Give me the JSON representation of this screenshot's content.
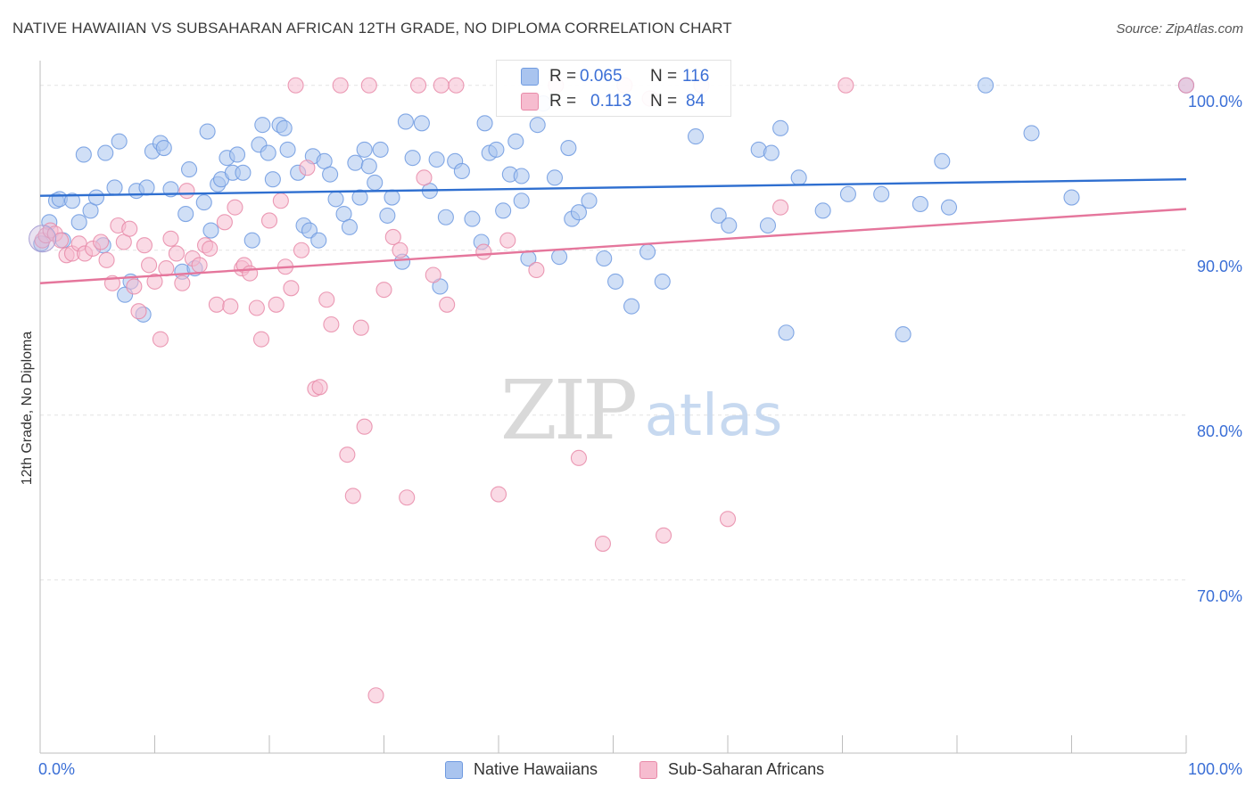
{
  "header": {
    "title": "NATIVE HAWAIIAN VS SUBSAHARAN AFRICAN 12TH GRADE, NO DIPLOMA CORRELATION CHART",
    "source": "Source: ZipAtlas.com"
  },
  "watermark": {
    "zip": "ZIP",
    "atlas": "atlas"
  },
  "legend": {
    "rows": [
      {
        "r_label": "R =",
        "r_value": "0.065",
        "n_label": "N =",
        "n_value": "116",
        "color": "#a9c4ef",
        "border": "#6f9ae0"
      },
      {
        "r_label": "R =",
        "r_value": "0.113",
        "n_label": "N =",
        "n_value": "84",
        "color": "#f6bccf",
        "border": "#e88aa8"
      }
    ],
    "bottom": [
      {
        "label": "Native Hawaiians",
        "color": "#a9c4ef",
        "border": "#6f9ae0"
      },
      {
        "label": "Sub-Saharan Africans",
        "color": "#f6bccf",
        "border": "#e88aa8"
      }
    ]
  },
  "chart_data": {
    "type": "scatter",
    "title": "NATIVE HAWAIIAN VS SUBSAHARAN AFRICAN 12TH GRADE, NO DIPLOMA CORRELATION CHART",
    "xlabel": "",
    "ylabel": "12th Grade, No Diploma",
    "xlim": [
      0,
      100
    ],
    "ylim": [
      59.5,
      101.5
    ],
    "x_tick_labels": {
      "left": "0.0%",
      "right": "100.0%"
    },
    "y_ticks": [
      {
        "value": 100,
        "label": "100.0%"
      },
      {
        "value": 90,
        "label": "90.0%"
      },
      {
        "value": 80,
        "label": "80.0%"
      },
      {
        "value": 70,
        "label": "70.0%"
      }
    ],
    "grid": true,
    "legend_position": "top-center",
    "series": [
      {
        "name": "Native Hawaiians",
        "color": "#6f9ae0",
        "fill": "#a9c4ef",
        "trend": {
          "x": [
            0,
            100
          ],
          "y": [
            93.3,
            94.3
          ],
          "color": "#2f6fd0"
        },
        "points": [
          [
            0.1,
            90.4
          ],
          [
            0.8,
            91.7
          ],
          [
            1.4,
            93.0
          ],
          [
            1.7,
            93.1
          ],
          [
            2.0,
            90.6
          ],
          [
            2.8,
            93.0
          ],
          [
            3.4,
            91.7
          ],
          [
            3.8,
            95.8
          ],
          [
            4.4,
            92.4
          ],
          [
            4.9,
            93.2
          ],
          [
            5.5,
            90.3
          ],
          [
            5.7,
            95.9
          ],
          [
            6.5,
            93.8
          ],
          [
            6.9,
            96.6
          ],
          [
            7.4,
            87.3
          ],
          [
            7.9,
            88.1
          ],
          [
            8.4,
            93.6
          ],
          [
            9.0,
            86.1
          ],
          [
            9.3,
            93.8
          ],
          [
            9.8,
            96.0
          ],
          [
            10.5,
            96.5
          ],
          [
            10.8,
            96.2
          ],
          [
            11.4,
            93.7
          ],
          [
            12.4,
            88.7
          ],
          [
            12.7,
            92.2
          ],
          [
            13.0,
            94.9
          ],
          [
            13.5,
            88.9
          ],
          [
            14.3,
            92.9
          ],
          [
            14.6,
            97.2
          ],
          [
            14.9,
            91.2
          ],
          [
            15.5,
            94.0
          ],
          [
            15.8,
            94.3
          ],
          [
            16.3,
            95.6
          ],
          [
            16.8,
            94.7
          ],
          [
            17.2,
            95.8
          ],
          [
            17.7,
            94.7
          ],
          [
            18.5,
            90.6
          ],
          [
            19.1,
            96.4
          ],
          [
            19.4,
            97.6
          ],
          [
            19.9,
            95.9
          ],
          [
            20.3,
            94.3
          ],
          [
            20.9,
            97.6
          ],
          [
            21.3,
            97.4
          ],
          [
            21.6,
            96.1
          ],
          [
            22.5,
            94.7
          ],
          [
            23.0,
            91.5
          ],
          [
            23.5,
            91.2
          ],
          [
            23.8,
            95.7
          ],
          [
            24.3,
            90.6
          ],
          [
            24.8,
            95.4
          ],
          [
            25.3,
            94.6
          ],
          [
            25.8,
            93.1
          ],
          [
            26.5,
            92.2
          ],
          [
            27.0,
            91.4
          ],
          [
            27.5,
            95.3
          ],
          [
            27.9,
            93.2
          ],
          [
            28.3,
            96.1
          ],
          [
            28.7,
            95.1
          ],
          [
            29.2,
            94.1
          ],
          [
            29.7,
            96.1
          ],
          [
            30.3,
            92.1
          ],
          [
            30.7,
            93.2
          ],
          [
            31.6,
            89.3
          ],
          [
            31.9,
            97.8
          ],
          [
            32.5,
            95.6
          ],
          [
            33.3,
            97.7
          ],
          [
            34.0,
            93.6
          ],
          [
            34.6,
            95.5
          ],
          [
            34.9,
            87.8
          ],
          [
            35.4,
            92.0
          ],
          [
            36.2,
            95.4
          ],
          [
            36.8,
            94.8
          ],
          [
            37.7,
            91.9
          ],
          [
            38.5,
            90.5
          ],
          [
            38.8,
            97.7
          ],
          [
            39.2,
            95.9
          ],
          [
            39.8,
            96.1
          ],
          [
            40.4,
            92.4
          ],
          [
            41.0,
            94.6
          ],
          [
            41.5,
            96.6
          ],
          [
            42.0,
            94.5
          ],
          [
            42.0,
            93.0
          ],
          [
            42.6,
            89.5
          ],
          [
            43.4,
            97.6
          ],
          [
            43.9,
            98.9
          ],
          [
            44.9,
            94.4
          ],
          [
            45.3,
            89.6
          ],
          [
            46.1,
            96.2
          ],
          [
            46.4,
            91.9
          ],
          [
            47.0,
            92.3
          ],
          [
            47.9,
            93.0
          ],
          [
            49.2,
            89.5
          ],
          [
            50.2,
            88.1
          ],
          [
            51.6,
            86.6
          ],
          [
            53.0,
            89.9
          ],
          [
            54.3,
            88.1
          ],
          [
            57.2,
            96.9
          ],
          [
            59.2,
            92.1
          ],
          [
            60.1,
            91.5
          ],
          [
            62.7,
            96.1
          ],
          [
            63.5,
            91.5
          ],
          [
            63.8,
            95.9
          ],
          [
            64.6,
            97.4
          ],
          [
            65.1,
            85.0
          ],
          [
            66.2,
            94.4
          ],
          [
            68.3,
            92.4
          ],
          [
            70.5,
            93.4
          ],
          [
            73.4,
            93.4
          ],
          [
            75.3,
            84.9
          ],
          [
            76.8,
            92.8
          ],
          [
            78.7,
            95.4
          ],
          [
            79.3,
            92.6
          ],
          [
            82.5,
            100.0
          ],
          [
            86.5,
            97.1
          ],
          [
            90.0,
            93.2
          ],
          [
            100.0,
            100.0
          ]
        ]
      },
      {
        "name": "Sub-Saharan Africans",
        "color": "#e88aa8",
        "fill": "#f6bccf",
        "trend": {
          "x": [
            0,
            100
          ],
          "y": [
            88.0,
            92.5
          ],
          "color": "#e5769c"
        },
        "points": [
          [
            0.2,
            90.6
          ],
          [
            0.5,
            90.9
          ],
          [
            0.9,
            91.2
          ],
          [
            1.3,
            91.0
          ],
          [
            1.8,
            90.6
          ],
          [
            2.3,
            89.7
          ],
          [
            2.8,
            89.8
          ],
          [
            3.4,
            90.4
          ],
          [
            3.9,
            89.8
          ],
          [
            4.6,
            90.1
          ],
          [
            5.3,
            90.5
          ],
          [
            5.8,
            89.4
          ],
          [
            6.3,
            88.0
          ],
          [
            6.8,
            91.5
          ],
          [
            7.3,
            90.5
          ],
          [
            7.8,
            91.3
          ],
          [
            8.2,
            87.8
          ],
          [
            8.6,
            86.3
          ],
          [
            9.1,
            90.3
          ],
          [
            9.5,
            89.1
          ],
          [
            10.0,
            88.1
          ],
          [
            10.5,
            84.6
          ],
          [
            11.0,
            88.9
          ],
          [
            11.4,
            90.7
          ],
          [
            11.9,
            89.8
          ],
          [
            12.4,
            88.0
          ],
          [
            12.8,
            93.6
          ],
          [
            13.3,
            89.5
          ],
          [
            13.9,
            89.1
          ],
          [
            14.4,
            90.3
          ],
          [
            14.8,
            90.1
          ],
          [
            15.4,
            86.7
          ],
          [
            16.1,
            91.7
          ],
          [
            16.6,
            86.6
          ],
          [
            17.0,
            92.6
          ],
          [
            17.6,
            88.9
          ],
          [
            17.8,
            89.1
          ],
          [
            18.3,
            88.6
          ],
          [
            18.9,
            86.5
          ],
          [
            19.3,
            84.6
          ],
          [
            20.0,
            91.8
          ],
          [
            20.6,
            86.7
          ],
          [
            21.0,
            93.0
          ],
          [
            21.4,
            89.0
          ],
          [
            21.9,
            87.7
          ],
          [
            22.3,
            100.0
          ],
          [
            22.8,
            90.0
          ],
          [
            23.3,
            95.0
          ],
          [
            24.0,
            81.6
          ],
          [
            24.4,
            81.7
          ],
          [
            25.0,
            87.0
          ],
          [
            25.4,
            85.5
          ],
          [
            26.2,
            100.0
          ],
          [
            26.8,
            77.6
          ],
          [
            27.3,
            75.1
          ],
          [
            28.0,
            85.3
          ],
          [
            28.3,
            79.3
          ],
          [
            28.7,
            100.0
          ],
          [
            29.3,
            63.0
          ],
          [
            30.0,
            87.6
          ],
          [
            30.8,
            90.8
          ],
          [
            31.4,
            90.0
          ],
          [
            32.0,
            75.0
          ],
          [
            33.0,
            100.0
          ],
          [
            33.5,
            94.4
          ],
          [
            34.3,
            88.5
          ],
          [
            35.0,
            100.0
          ],
          [
            35.5,
            86.7
          ],
          [
            36.3,
            100.0
          ],
          [
            38.7,
            89.9
          ],
          [
            40.0,
            75.2
          ],
          [
            40.8,
            90.6
          ],
          [
            43.3,
            88.8
          ],
          [
            45.0,
            100.0
          ],
          [
            47.0,
            77.4
          ],
          [
            49.1,
            72.2
          ],
          [
            51.0,
            100.0
          ],
          [
            53.2,
            99.2
          ],
          [
            54.4,
            72.7
          ],
          [
            57.7,
            100.0
          ],
          [
            60.0,
            73.7
          ],
          [
            64.6,
            92.6
          ],
          [
            70.3,
            100.0
          ],
          [
            100.0,
            100.0
          ]
        ]
      }
    ]
  }
}
